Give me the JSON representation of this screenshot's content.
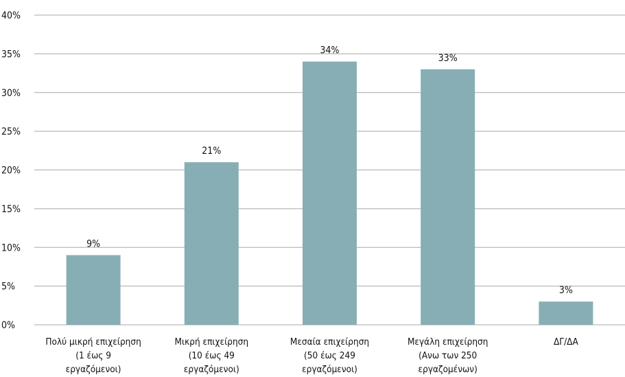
{
  "chart_data": {
    "type": "bar",
    "categories": [
      [
        "Πολύ μικρή επιχείρηση",
        "(1 έως 9",
        "εργαζόμενοι)"
      ],
      [
        "Μικρή επιχείρηση",
        "(10 έως 49",
        "εργαζόμενοι)"
      ],
      [
        "Μεσαία επιχείρηση",
        "(50 έως 249",
        "εργαζόμενοι)"
      ],
      [
        "Μεγάλη επιχείρηση",
        "(Ανω των 250",
        "εργαζομένων)"
      ],
      [
        "ΔΓ/ΔΑ"
      ]
    ],
    "values": [
      9,
      21,
      34,
      33,
      3
    ],
    "data_labels": [
      "9%",
      "21%",
      "34%",
      "33%",
      "3%"
    ],
    "yticks": [
      "0%",
      "5%",
      "10%",
      "15%",
      "20%",
      "25%",
      "30%",
      "35%",
      "40%"
    ],
    "ylim": [
      0,
      40
    ],
    "grid": true,
    "bar_color": "#88aeb5",
    "grid_color": "#a9a9a9"
  }
}
